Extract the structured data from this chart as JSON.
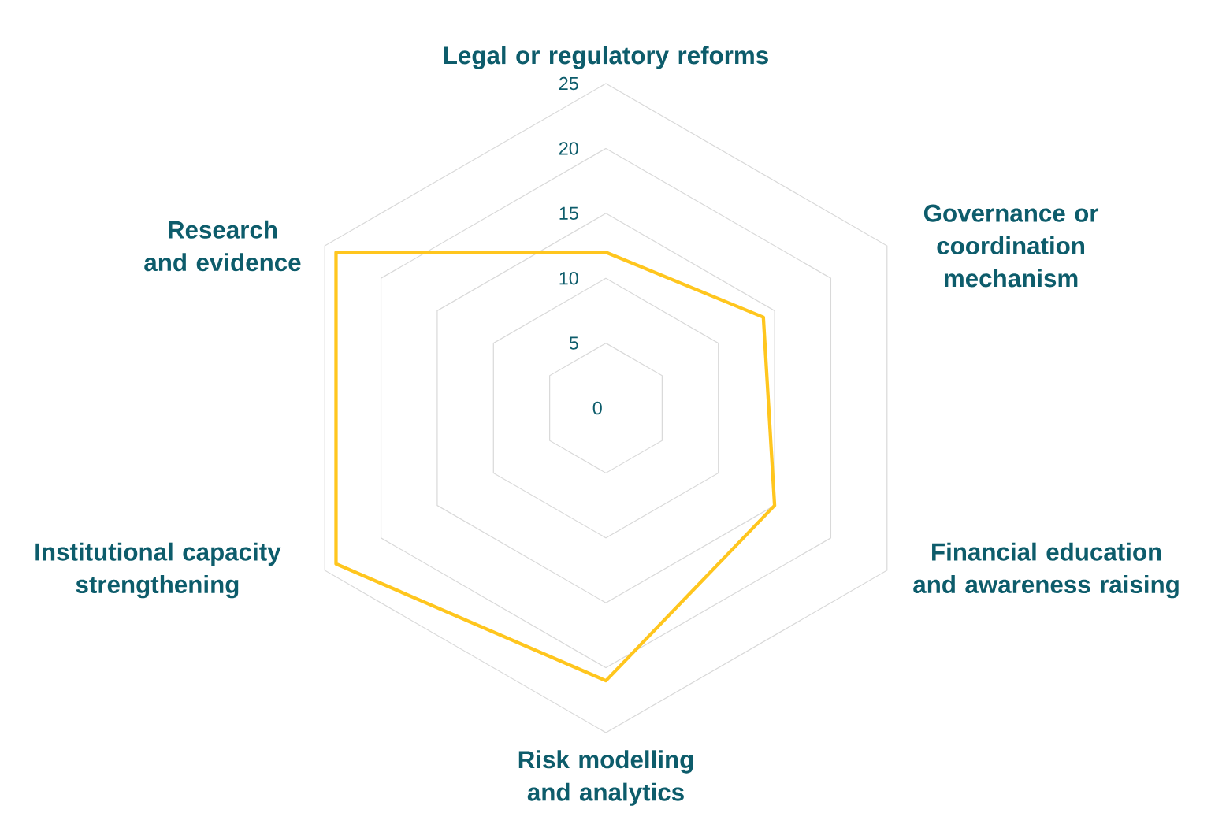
{
  "chart_data": {
    "type": "radar",
    "categories": [
      "Legal or regulatory reforms",
      "Governance or coordination mechanism",
      "Financial education and awareness raising",
      "Risk modelling and analytics",
      "Institutional capacity strengthening",
      "Research and evidence"
    ],
    "series": [
      {
        "color": "#ffc61e",
        "values": [
          12,
          14,
          15,
          21,
          24,
          24
        ]
      }
    ],
    "ylim": [
      0,
      25
    ],
    "yticks": [
      0,
      5,
      10,
      15,
      20,
      25
    ],
    "grid": true,
    "marker": "none"
  }
}
